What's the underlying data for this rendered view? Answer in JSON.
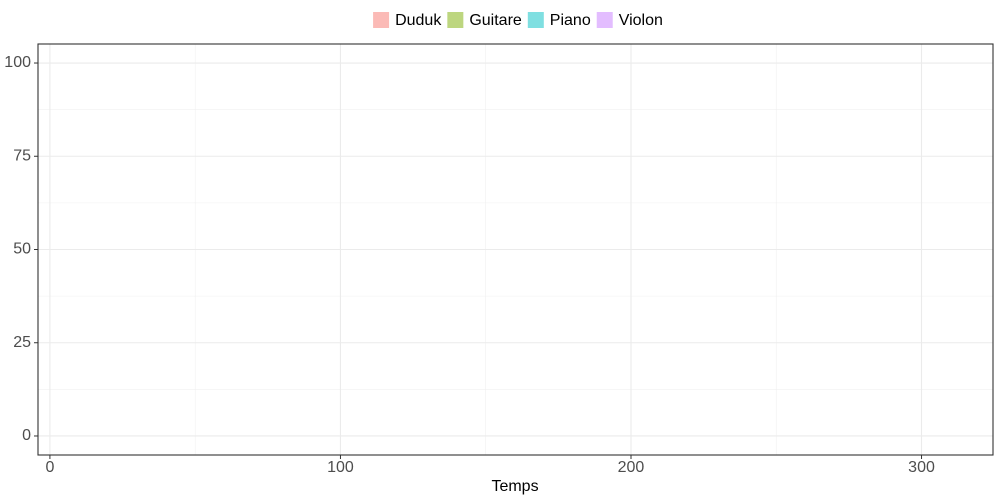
{
  "chart_data": {
    "type": "area",
    "x_label": "Temps",
    "x": [],
    "series": [
      {
        "name": "Duduk",
        "color": "#fbbab6",
        "values": []
      },
      {
        "name": "Guitare",
        "color": "#bdd67f",
        "values": []
      },
      {
        "name": "Piano",
        "color": "#7fdfe1",
        "values": []
      },
      {
        "name": "Violon",
        "color": "#e3bdff",
        "values": []
      }
    ],
    "xlim": [
      -4.1,
      324.6
    ],
    "xticks": [
      0,
      100,
      200,
      300
    ],
    "x_minor_ticks": [
      50,
      150,
      250
    ],
    "ylim": [
      -5.1,
      105.1
    ],
    "yticks": [
      0,
      25,
      50,
      75,
      100
    ],
    "y_minor_ticks": [
      12.5,
      37.5,
      62.5,
      87.5
    ],
    "grid": true,
    "legend": "top"
  }
}
